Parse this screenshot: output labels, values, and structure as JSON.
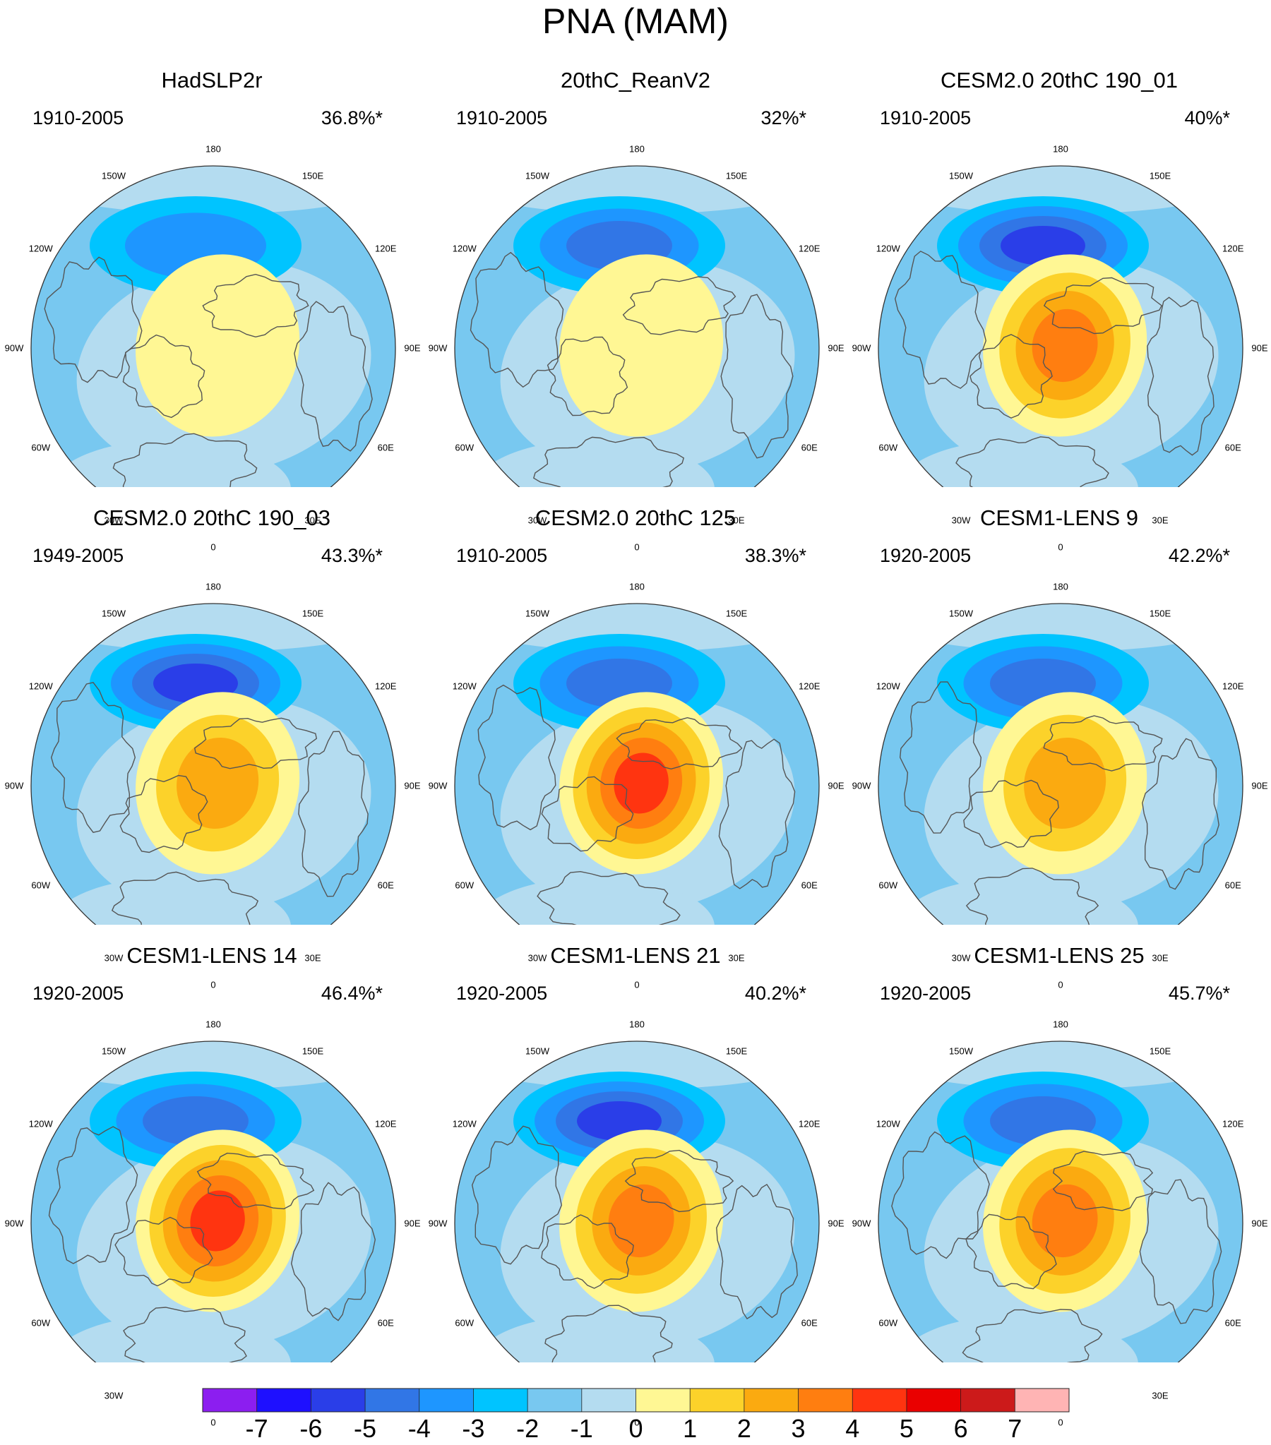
{
  "figure": {
    "title": "PNA (MAM)"
  },
  "longitude_labels": [
    "180",
    "150E",
    "120E",
    "90E",
    "60E",
    "30E",
    "0",
    "30W",
    "60W",
    "90W",
    "120W",
    "150W"
  ],
  "panels": [
    {
      "title": "HadSLP2r",
      "period": "1910-2005",
      "variance": "36.8%*",
      "low_center": -3,
      "high_center": 2
    },
    {
      "title": "20thC_ReanV2",
      "period": "1910-2005",
      "variance": "32%*",
      "low_center": -4,
      "high_center": 2
    },
    {
      "title": "CESM2.0 20thC 190_01",
      "period": "1910-2005",
      "variance": "40%*",
      "low_center": -5,
      "high_center": 5
    },
    {
      "title": "CESM2.0 20thC 190_03",
      "period": "1949-2005",
      "variance": "43.3%*",
      "low_center": -5,
      "high_center": 4
    },
    {
      "title": "CESM2.0 20thC 125",
      "period": "1910-2005",
      "variance": "38.3%*",
      "low_center": -4,
      "high_center": 6
    },
    {
      "title": "CESM1-LENS 9",
      "period": "1920-2005",
      "variance": "42.2%*",
      "low_center": -4,
      "high_center": 4
    },
    {
      "title": "CESM1-LENS 14",
      "period": "1920-2005",
      "variance": "46.4%*",
      "low_center": -4,
      "high_center": 6
    },
    {
      "title": "CESM1-LENS 21",
      "period": "1920-2005",
      "variance": "40.2%*",
      "low_center": -5,
      "high_center": 5
    },
    {
      "title": "CESM1-LENS 25",
      "period": "1920-2005",
      "variance": "45.7%*",
      "low_center": -4,
      "high_center": 5
    }
  ],
  "colorbar": {
    "labels": [
      "-7",
      "-6",
      "-5",
      "-4",
      "-3",
      "-2",
      "-1",
      "0",
      "1",
      "2",
      "3",
      "4",
      "5",
      "6",
      "7"
    ],
    "colors": [
      "#8c1ef0",
      "#1e10ff",
      "#2a3ee8",
      "#3176e6",
      "#1e96ff",
      "#00c4ff",
      "#78c8f0",
      "#b4dcf0",
      "#fff794",
      "#fcd22a",
      "#fbaa10",
      "#ff7e10",
      "#ff3410",
      "#ea0000",
      "#cc1a1a",
      "#ffb4b4"
    ]
  }
}
